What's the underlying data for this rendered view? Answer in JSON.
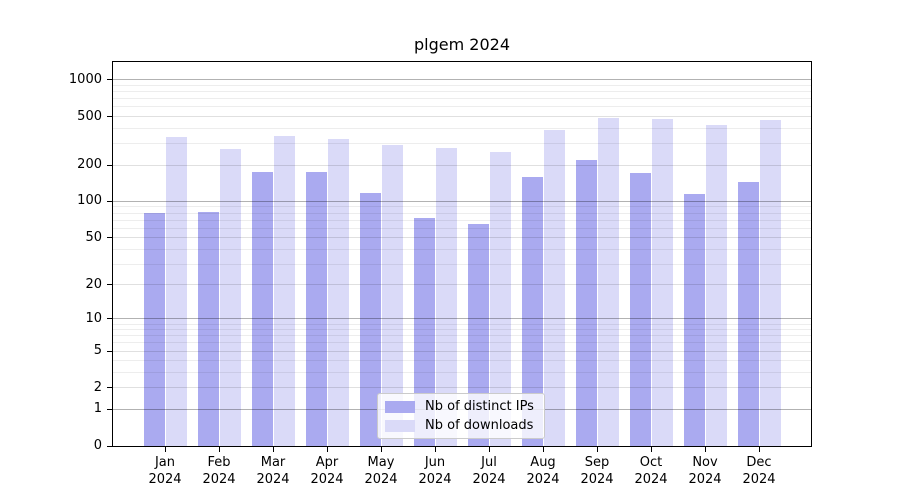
{
  "page": {
    "background": "#ffffff"
  },
  "chart_data": {
    "type": "bar",
    "title": "plgem 2024",
    "categories": [
      "Jan",
      "Feb",
      "Mar",
      "Apr",
      "May",
      "Jun",
      "Jul",
      "Aug",
      "Sep",
      "Oct",
      "Nov",
      "Dec"
    ],
    "category_year": "2024",
    "series": [
      {
        "name": "Nb of distinct IPs",
        "color": "#aaaaf0",
        "values": [
          80,
          82,
          175,
          175,
          117,
          73,
          65,
          158,
          220,
          172,
          116,
          144
        ]
      },
      {
        "name": "Nb of downloads",
        "color": "#dadaf8",
        "values": [
          340,
          270,
          345,
          325,
          290,
          275,
          255,
          390,
          490,
          480,
          430,
          470
        ]
      }
    ],
    "yscale": "log1p",
    "ylim": [
      0,
      1400
    ],
    "yticks": [
      1000,
      500,
      200,
      100,
      50,
      20,
      10,
      5,
      2,
      1,
      0
    ],
    "yticks_minor": [
      900,
      800,
      700,
      600,
      400,
      300,
      90,
      80,
      70,
      60,
      40,
      30,
      9,
      8,
      7,
      6,
      4,
      3
    ],
    "grid": true,
    "legend_position": "lower center"
  },
  "colors": {
    "grid_major": "rgba(0,0,0,0.30)",
    "grid_mid": "rgba(0,0,0,0.12)",
    "grid_minor": "rgba(0,0,0,0.07)",
    "axis": "#000000",
    "text": "#000000",
    "legend_border": "#cbcbcb",
    "legend_background": "rgba(255,255,255,0.8)"
  }
}
